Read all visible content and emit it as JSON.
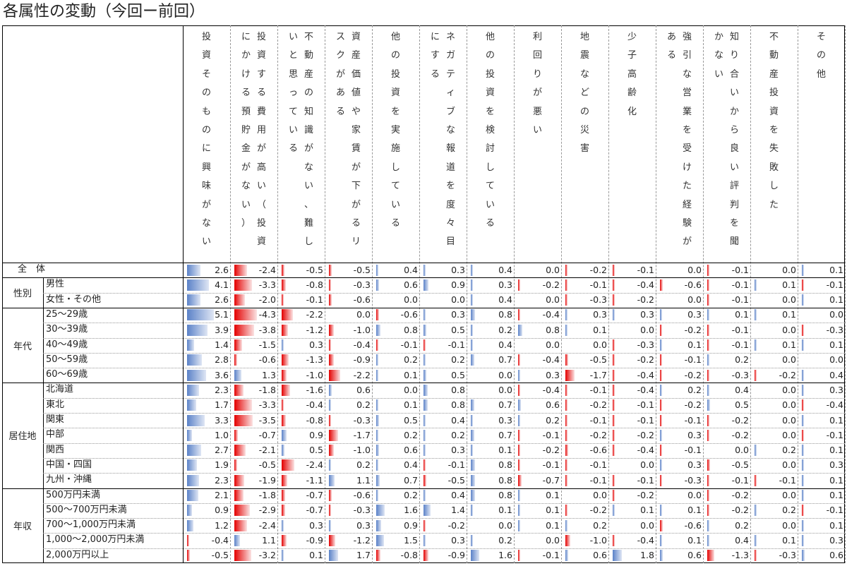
{
  "title": "各属性の変動（今回ー前回）",
  "colors": {
    "positive": "#5b82c8",
    "negative": "#e40000"
  },
  "columns": [
    "投資そのものに興味がない",
    "投資する費用が高い（投資にかける預貯金がない）",
    "不動産の知識がない、難しいと思っている",
    "資産価値や家賃が下がるリスクがある",
    "他の投資を実施している",
    "ネガティブな報道を度々目にする",
    "他の投資を検討している",
    "利回りが悪い",
    "地震などの災害",
    "少子高齢化",
    "強引な営業を受けた経験がある",
    "知り合いから良い評判を聞かない",
    "不動産投資を失敗した",
    "その他"
  ],
  "groups": [
    {
      "label": "性別",
      "start": 1,
      "count": 2
    },
    {
      "label": "年代",
      "start": 3,
      "count": 5
    },
    {
      "label": "居住地",
      "start": 8,
      "count": 7
    },
    {
      "label": "年収",
      "start": 15,
      "count": 5
    }
  ],
  "chart_data": {
    "type": "table",
    "title": "各属性の変動（今回ー前回）",
    "columns": [
      "投資そのものに興味がない",
      "投資する費用が高い（投資にかける預貯金がない）",
      "不動産の知識がない、難しいと思っている",
      "資産価値や家賃が下がるリスクがある",
      "他の投資を実施している",
      "ネガティブな報道を度々目にする",
      "他の投資を検討している",
      "利回りが悪い",
      "地震などの災害",
      "少子高齢化",
      "強引な営業を受けた経験がある",
      "知り合いから良い評判を聞かない",
      "不動産投資を失敗した",
      "その他"
    ],
    "rows": [
      {
        "label": "全　体",
        "values": [
          "2.6",
          "-2.4",
          "-0.5",
          "-0.5",
          "0.4",
          "0.3",
          "0.4",
          "0.0",
          "-0.2",
          "-0.1",
          "0.0",
          "-0.1",
          "0.0",
          "0.1"
        ]
      },
      {
        "label": "男性",
        "values": [
          "4.1",
          "-3.3",
          "-0.8",
          "-0.3",
          "0.6",
          "0.9",
          "0.3",
          "-0.2",
          "-0.1",
          "-0.4",
          "-0.6",
          "-0.1",
          "0.1",
          "-0.1"
        ]
      },
      {
        "label": "女性・その他",
        "values": [
          "2.6",
          "-2.0",
          "-0.1",
          "-0.6",
          "0.0",
          "0.0",
          "0.4",
          "0.0",
          "-0.3",
          "-0.2",
          "0.0",
          "-0.1",
          "0.0",
          "0.1"
        ]
      },
      {
        "label": "25〜29歳",
        "values": [
          "5.1",
          "-4.3",
          "-2.2",
          "0.0",
          "-0.6",
          "0.3",
          "0.8",
          "-0.4",
          "0.3",
          "0.3",
          "0.3",
          "0.1",
          "0.1",
          "0.0"
        ]
      },
      {
        "label": "30〜39歳",
        "values": [
          "3.9",
          "-3.8",
          "-1.2",
          "-1.0",
          "0.8",
          "0.5",
          "0.2",
          "0.8",
          "0.1",
          "0.0",
          "-0.2",
          "-0.1",
          "0.0",
          "-0.3"
        ]
      },
      {
        "label": "40〜49歳",
        "values": [
          "1.4",
          "-1.5",
          "0.3",
          "-0.4",
          "-0.1",
          "-0.1",
          "0.4",
          "0.0",
          "0.0",
          "-0.3",
          "0.1",
          "-0.1",
          "0.1",
          "0.1"
        ]
      },
      {
        "label": "50〜59歳",
        "values": [
          "2.8",
          "-0.6",
          "-1.3",
          "-0.9",
          "0.2",
          "0.2",
          "0.7",
          "-0.4",
          "-0.5",
          "-0.2",
          "-0.1",
          "0.2",
          "0.0",
          "0.0"
        ]
      },
      {
        "label": "60〜69歳",
        "values": [
          "3.6",
          "1.3",
          "-1.0",
          "-2.2",
          "0.1",
          "0.5",
          "0.0",
          "0.3",
          "-1.7",
          "-0.4",
          "-0.2",
          "-0.3",
          "-0.2",
          "0.4"
        ]
      },
      {
        "label": "北海道",
        "values": [
          "2.3",
          "-1.8",
          "-1.6",
          "0.6",
          "0.0",
          "0.8",
          "0.0",
          "-0.4",
          "-0.1",
          "-0.4",
          "0.2",
          "0.4",
          "0.0",
          "0.3"
        ]
      },
      {
        "label": "東北",
        "values": [
          "1.7",
          "-3.3",
          "-0.4",
          "0.2",
          "0.1",
          "0.8",
          "0.7",
          "0.6",
          "-0.2",
          "-0.1",
          "-0.2",
          "0.5",
          "0.0",
          "-0.4"
        ]
      },
      {
        "label": "関東",
        "values": [
          "3.3",
          "-3.5",
          "-0.8",
          "-0.3",
          "0.5",
          "0.4",
          "0.3",
          "0.2",
          "-0.1",
          "-0.1",
          "-0.1",
          "-0.2",
          "0.0",
          "0.1"
        ]
      },
      {
        "label": "中部",
        "values": [
          "1.0",
          "-0.7",
          "0.9",
          "-1.7",
          "0.2",
          "0.2",
          "0.7",
          "-0.1",
          "-0.2",
          "-0.2",
          "0.3",
          "-0.2",
          "0.0",
          "-0.1"
        ]
      },
      {
        "label": "関西",
        "values": [
          "2.7",
          "-2.1",
          "0.5",
          "-1.0",
          "0.6",
          "0.3",
          "0.1",
          "-0.2",
          "-0.6",
          "-0.4",
          "-0.1",
          "0.0",
          "0.2",
          "0.1"
        ]
      },
      {
        "label": "中国・四国",
        "values": [
          "1.9",
          "-0.5",
          "-2.4",
          "0.2",
          "0.4",
          "-0.1",
          "0.8",
          "-0.1",
          "-0.1",
          "0.0",
          "0.3",
          "-0.5",
          "0.0",
          "0.3"
        ]
      },
      {
        "label": "九州・沖縄",
        "values": [
          "2.3",
          "-1.9",
          "-1.1",
          "1.1",
          "0.7",
          "-0.5",
          "0.8",
          "-0.7",
          "-0.1",
          "-0.1",
          "-0.3",
          "-0.1",
          "-0.1",
          "0.1"
        ]
      },
      {
        "label": "500万円未満",
        "values": [
          "2.1",
          "-1.8",
          "-0.7",
          "-0.6",
          "0.2",
          "0.4",
          "0.8",
          "0.1",
          "0.0",
          "-0.2",
          "0.0",
          "-0.2",
          "0.0",
          "0.1"
        ]
      },
      {
        "label": "500〜700万円未満",
        "values": [
          "0.9",
          "-2.9",
          "-0.7",
          "-0.3",
          "1.6",
          "1.4",
          "0.1",
          "0.1",
          "-0.2",
          "0.1",
          "0.1",
          "-0.2",
          "0.2",
          "-0.1"
        ]
      },
      {
        "label": "700〜1,000万円未満",
        "values": [
          "1.2",
          "-2.4",
          "0.3",
          "0.3",
          "0.9",
          "-0.2",
          "0.0",
          "0.1",
          "0.2",
          "0.0",
          "-0.6",
          "0.2",
          "0.0",
          "0.1"
        ]
      },
      {
        "label": "1,000〜2,000万円未満",
        "values": [
          "-0.4",
          "1.1",
          "-0.9",
          "-1.2",
          "1.5",
          "0.3",
          "0.2",
          "0.0",
          "-1.0",
          "-0.4",
          "0.1",
          "0.4",
          "0.1",
          "0.3"
        ]
      },
      {
        "label": "2,000万円以上",
        "values": [
          "-0.5",
          "-3.2",
          "0.1",
          "1.7",
          "-0.8",
          "-0.9",
          "1.6",
          "-0.1",
          "0.6",
          "1.8",
          "0.6",
          "-1.3",
          "-0.3",
          "0.6"
        ]
      }
    ]
  }
}
